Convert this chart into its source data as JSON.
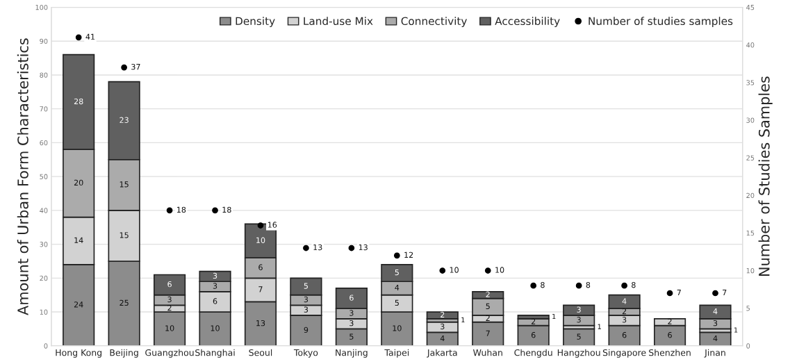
{
  "chart_data": {
    "type": "bar",
    "stacked": true,
    "ylabel": "Amount of Urban Form Characteristics",
    "y2label": "Number of Studies Samples",
    "categories": [
      "Hong Kong",
      "Beijing",
      "Guangzhou",
      "Shanghai",
      "Seoul",
      "Tokyo",
      "Nanjing",
      "Taipei",
      "Jakarta",
      "Wuhan",
      "Chengdu",
      "Hangzhou",
      "Singapore",
      "Shenzhen",
      "Jinan"
    ],
    "series": [
      {
        "name": "Density",
        "color": "#8c8c8c",
        "values": [
          24,
          25,
          10,
          10,
          13,
          9,
          5,
          10,
          4,
          7,
          6,
          5,
          6,
          6,
          4
        ]
      },
      {
        "name": "Land-use Mix",
        "color": "#d2d2d2",
        "values": [
          14,
          15,
          2,
          6,
          7,
          3,
          3,
          5,
          3,
          2,
          null,
          1,
          3,
          2,
          1
        ]
      },
      {
        "name": "Connectivity",
        "color": "#ababab",
        "values": [
          20,
          15,
          3,
          3,
          6,
          3,
          3,
          4,
          1,
          5,
          2,
          3,
          2,
          null,
          3
        ]
      },
      {
        "name": "Accessibility",
        "color": "#606060",
        "values": [
          28,
          23,
          6,
          3,
          10,
          5,
          6,
          5,
          2,
          2,
          1,
          3,
          4,
          null,
          4
        ]
      },
      {
        "name": "Number of studies samples",
        "type": "scatter",
        "axis": "y2",
        "marker": "circle",
        "color": "#000000",
        "values": [
          41,
          37,
          18,
          18,
          16,
          13,
          13,
          12,
          10,
          10,
          8,
          8,
          8,
          7,
          7
        ]
      }
    ],
    "ylim": [
      0,
      100
    ],
    "yticks": [
      0,
      10,
      20,
      30,
      40,
      50,
      60,
      70,
      80,
      90,
      100
    ],
    "y2lim": [
      0,
      45
    ],
    "y2ticks": [
      0,
      5,
      10,
      15,
      20,
      25,
      30,
      35,
      40,
      45
    ],
    "grid": "y",
    "legend": "top right",
    "data_labels": true
  }
}
